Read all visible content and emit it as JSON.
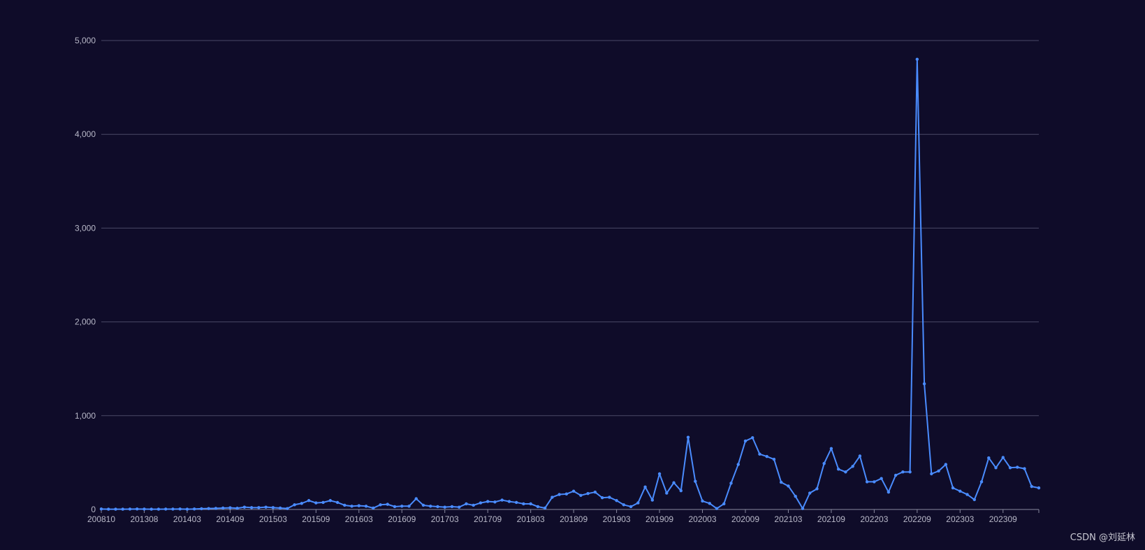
{
  "watermark": "CSDN @刘延林",
  "colors": {
    "background": "#0f0c29",
    "line": "#4a8cff",
    "grid": "#4a4866",
    "axis": "#8a8aa0",
    "tick_text": "#b8b8c8"
  },
  "chart_data": {
    "type": "line",
    "title": "",
    "xlabel": "",
    "ylabel": "",
    "ylim": [
      0,
      5000
    ],
    "y_ticks": [
      "0",
      "1,000",
      "2,000",
      "3,000",
      "4,000",
      "5,000"
    ],
    "y_tick_values": [
      0,
      1000,
      2000,
      3000,
      4000,
      5000
    ],
    "grid": true,
    "x_labels": [
      {
        "i": 0,
        "label": "200810"
      },
      {
        "i": 6,
        "label": "201308"
      },
      {
        "i": 12,
        "label": "201403"
      },
      {
        "i": 18,
        "label": "201409"
      },
      {
        "i": 24,
        "label": "201503"
      },
      {
        "i": 30,
        "label": "201509"
      },
      {
        "i": 36,
        "label": "201603"
      },
      {
        "i": 42,
        "label": "201609"
      },
      {
        "i": 48,
        "label": "201703"
      },
      {
        "i": 54,
        "label": "201709"
      },
      {
        "i": 60,
        "label": "201803"
      },
      {
        "i": 66,
        "label": "201809"
      },
      {
        "i": 72,
        "label": "201903"
      },
      {
        "i": 78,
        "label": "201909"
      },
      {
        "i": 84,
        "label": "202003"
      },
      {
        "i": 90,
        "label": "202009"
      },
      {
        "i": 96,
        "label": "202103"
      },
      {
        "i": 102,
        "label": "202109"
      },
      {
        "i": 108,
        "label": "202203"
      },
      {
        "i": 114,
        "label": "202209"
      },
      {
        "i": 120,
        "label": "202303"
      },
      {
        "i": 126,
        "label": "202309"
      }
    ],
    "series": [
      {
        "values": [
          5,
          3,
          3,
          3,
          4,
          5,
          4,
          3,
          3,
          4,
          4,
          5,
          3,
          5,
          8,
          10,
          12,
          15,
          18,
          13,
          25,
          20,
          20,
          25,
          20,
          15,
          10,
          50,
          65,
          95,
          70,
          75,
          95,
          75,
          45,
          35,
          40,
          35,
          15,
          50,
          55,
          30,
          35,
          35,
          115,
          45,
          35,
          30,
          25,
          30,
          25,
          60,
          45,
          70,
          85,
          80,
          100,
          85,
          75,
          60,
          60,
          30,
          15,
          130,
          160,
          165,
          195,
          150,
          170,
          185,
          125,
          130,
          95,
          50,
          30,
          70,
          240,
          100,
          380,
          175,
          285,
          200,
          770,
          300,
          90,
          65,
          10,
          60,
          280,
          480,
          730,
          765,
          590,
          565,
          535,
          290,
          250,
          140,
          10,
          175,
          220,
          490,
          650,
          430,
          400,
          460,
          570,
          295,
          295,
          330,
          185,
          365,
          400,
          400,
          4800,
          1340,
          380,
          410,
          480,
          230,
          195,
          160,
          105,
          295,
          550,
          445,
          555,
          445,
          450,
          435,
          245,
          230
        ]
      }
    ]
  }
}
